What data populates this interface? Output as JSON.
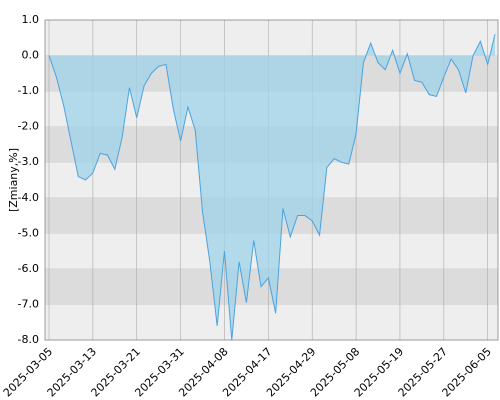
{
  "chart_data": {
    "type": "area",
    "y_label": "[Zmiany,%]",
    "categories": [
      "2025-03-05",
      null,
      null,
      null,
      null,
      null,
      "2025-03-13",
      null,
      null,
      null,
      null,
      null,
      "2025-03-21",
      null,
      null,
      null,
      null,
      null,
      "2025-03-31",
      null,
      null,
      null,
      null,
      null,
      "2025-04-08",
      null,
      null,
      null,
      null,
      null,
      "2025-04-17",
      null,
      null,
      null,
      null,
      null,
      "2025-04-29",
      null,
      null,
      null,
      null,
      null,
      "2025-05-08",
      null,
      null,
      null,
      null,
      null,
      "2025-05-19",
      null,
      null,
      null,
      null,
      null,
      "2025-05-27",
      null,
      null,
      null,
      null,
      null,
      "2025-06-05",
      null
    ],
    "values": [
      0.0,
      -0.6,
      -1.4,
      -2.4,
      -3.4,
      -3.5,
      -3.3,
      -2.75,
      -2.8,
      -3.2,
      -2.3,
      -0.9,
      -1.75,
      -0.85,
      -0.5,
      -0.3,
      -0.25,
      -1.5,
      -2.4,
      -1.45,
      -2.1,
      -4.4,
      -5.8,
      -7.6,
      -5.5,
      -8.0,
      -5.8,
      -6.95,
      -5.2,
      -6.5,
      -6.25,
      -7.25,
      -4.3,
      -5.1,
      -4.5,
      -4.5,
      -4.65,
      -5.05,
      -3.15,
      -2.9,
      -3.0,
      -3.05,
      -2.2,
      -0.2,
      0.35,
      -0.2,
      -0.4,
      0.15,
      -0.5,
      0.05,
      -0.7,
      -0.75,
      -1.1,
      -1.15,
      -0.6,
      -0.1,
      -0.4,
      -1.05,
      0.0,
      0.4,
      -0.25,
      0.6
    ],
    "color": "#4aa3df",
    "ylim": [
      -8,
      1
    ],
    "yticks": [
      {
        "value": 1,
        "label": "1.0"
      },
      {
        "value": 0,
        "label": "0.0"
      },
      {
        "value": -1,
        "label": "-1.0"
      },
      {
        "value": -2,
        "label": "-2.0"
      },
      {
        "value": -3,
        "label": "-3.0"
      },
      {
        "value": -4,
        "label": "-4.0"
      },
      {
        "value": -5,
        "label": "-5.0"
      },
      {
        "value": -6,
        "label": "-6.0"
      },
      {
        "value": -7,
        "label": "-7.0"
      },
      {
        "value": -8,
        "label": "-8.0"
      }
    ],
    "grid": true
  }
}
